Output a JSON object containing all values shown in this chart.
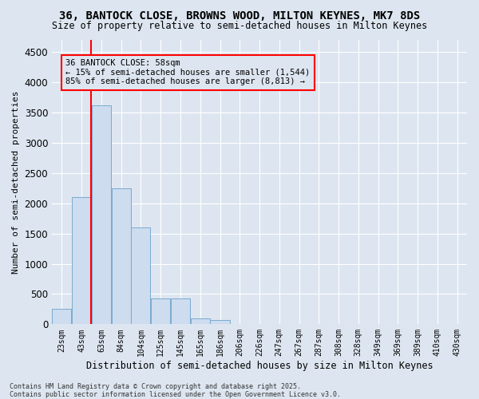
{
  "title": "36, BANTOCK CLOSE, BROWNS WOOD, MILTON KEYNES, MK7 8DS",
  "subtitle": "Size of property relative to semi-detached houses in Milton Keynes",
  "xlabel": "Distribution of semi-detached houses by size in Milton Keynes",
  "ylabel": "Number of semi-detached properties",
  "bar_color": "#cddcef",
  "bar_edgecolor": "#7aaad0",
  "categories": [
    "23sqm",
    "43sqm",
    "63sqm",
    "84sqm",
    "104sqm",
    "125sqm",
    "145sqm",
    "165sqm",
    "186sqm",
    "206sqm",
    "226sqm",
    "247sqm",
    "267sqm",
    "287sqm",
    "308sqm",
    "328sqm",
    "349sqm",
    "369sqm",
    "389sqm",
    "410sqm",
    "430sqm"
  ],
  "values": [
    250,
    2100,
    3620,
    2250,
    1600,
    430,
    430,
    100,
    70,
    0,
    0,
    0,
    0,
    0,
    0,
    0,
    0,
    0,
    0,
    0,
    0
  ],
  "ylim": [
    0,
    4700
  ],
  "yticks": [
    0,
    500,
    1000,
    1500,
    2000,
    2500,
    3000,
    3500,
    4000,
    4500
  ],
  "property_label": "36 BANTOCK CLOSE: 58sqm",
  "pct_smaller": 15,
  "pct_larger": 85,
  "count_smaller": 1544,
  "count_larger": 8813,
  "vline_x_index": 1.48,
  "background_color": "#dde6f0",
  "grid_color": "#ffffff",
  "ann_line1": "36 BANTOCK CLOSE: 58sqm",
  "ann_line2": "← 15% of semi-detached houses are smaller (1,544)",
  "ann_line3": "85% of semi-detached houses are larger (8,813) →",
  "footnote": "Contains HM Land Registry data © Crown copyright and database right 2025.\nContains public sector information licensed under the Open Government Licence v3.0."
}
